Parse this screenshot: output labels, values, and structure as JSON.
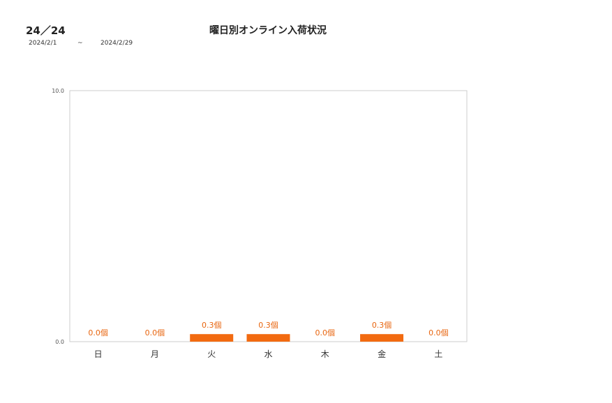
{
  "header": {
    "code": "24／24",
    "title": "曜日別オンライン入荷状況",
    "period_start": "2024/2/1",
    "period_sep": "~",
    "period_end": "2024/2/29"
  },
  "colors": {
    "bar": "#f26a10",
    "label": "#e8650f",
    "axis": "#cccccc",
    "tick": "#555555"
  },
  "chart_data": {
    "type": "bar",
    "title": "曜日別オンライン入荷状況",
    "categories": [
      "日",
      "月",
      "火",
      "水",
      "木",
      "金",
      "土"
    ],
    "values": [
      0.0,
      0.0,
      0.3,
      0.3,
      0.0,
      0.3,
      0.0
    ],
    "data_labels": [
      "0.0個",
      "0.0個",
      "0.3個",
      "0.3個",
      "0.0個",
      "0.3個",
      "0.0個"
    ],
    "ylim": [
      0,
      10
    ],
    "yticks": [
      "0.0",
      "10.0"
    ],
    "grid": false,
    "legend": "none"
  }
}
